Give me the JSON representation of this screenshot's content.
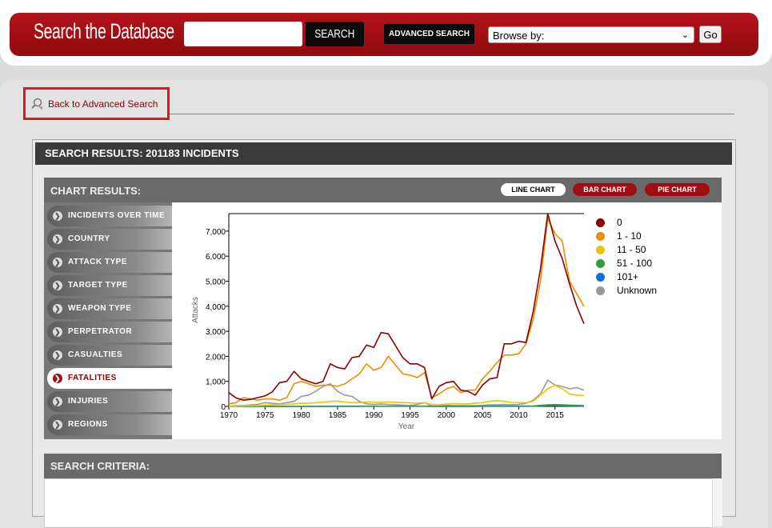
{
  "header": {
    "brand": "Search the Database",
    "search_button": "SEARCH",
    "advanced_button": "ADVANCED SEARCH",
    "browse_value": "Browse by:",
    "go_button": "Go",
    "banner_color": "#a10d12"
  },
  "back_link": "Back to Advanced Search",
  "results": {
    "title": "SEARCH RESULTS: 201183 INCIDENTS"
  },
  "chart_panel": {
    "title": "CHART RESULTS:",
    "tabs": [
      "LINE CHART",
      "BAR CHART",
      "PIE CHART"
    ],
    "active_tab": "LINE CHART"
  },
  "sidebar": {
    "items": [
      {
        "label": "INCIDENTS OVER TIME"
      },
      {
        "label": "COUNTRY"
      },
      {
        "label": "ATTACK TYPE"
      },
      {
        "label": "TARGET TYPE"
      },
      {
        "label": "WEAPON TYPE"
      },
      {
        "label": "PERPETRATOR"
      },
      {
        "label": "CASUALTIES"
      },
      {
        "label": "FATALITIES",
        "active": true
      },
      {
        "label": "INJURIES"
      },
      {
        "label": "REGIONS"
      }
    ]
  },
  "criteria": {
    "title": "SEARCH CRITERIA:"
  },
  "chart_data": {
    "type": "line",
    "xlabel": "Year",
    "ylabel": "Attacks",
    "xlim": [
      1970,
      2019
    ],
    "ylim": [
      0,
      7700
    ],
    "x_ticks": [
      1970,
      1975,
      1980,
      1985,
      1990,
      1995,
      2000,
      2005,
      2010,
      2015
    ],
    "y_ticks": [
      0,
      1000,
      2000,
      3000,
      4000,
      5000,
      6000,
      7000
    ],
    "y_tick_labels": [
      "0",
      "1,000",
      "2,000",
      "3,000",
      "4,000",
      "5,000",
      "6,000",
      "7,000"
    ],
    "legend_position": "right",
    "x": [
      1970,
      1971,
      1972,
      1973,
      1974,
      1975,
      1976,
      1977,
      1978,
      1979,
      1980,
      1981,
      1982,
      1983,
      1984,
      1985,
      1986,
      1987,
      1988,
      1989,
      1990,
      1991,
      1992,
      1994,
      1995,
      1996,
      1997,
      1998,
      1999,
      2000,
      2001,
      2002,
      2003,
      2004,
      2005,
      2006,
      2007,
      2008,
      2009,
      2010,
      2011,
      2012,
      2013,
      2014,
      2015,
      2016,
      2017,
      2018,
      2019
    ],
    "series": [
      {
        "name": "0",
        "color": "#8b0000",
        "values": [
          550,
          340,
          250,
          280,
          350,
          420,
          580,
          950,
          1000,
          1400,
          1100,
          1000,
          900,
          1000,
          1700,
          1550,
          1500,
          1950,
          2000,
          2450,
          2350,
          2950,
          2900,
          1950,
          1700,
          1700,
          1550,
          300,
          800,
          950,
          1000,
          650,
          600,
          450,
          850,
          1100,
          1150,
          2500,
          2500,
          2600,
          2550,
          3800,
          5500,
          7700,
          6600,
          5900,
          4900,
          4000,
          3300
        ]
      },
      {
        "name": "1 - 10",
        "color": "#f08c00",
        "values": [
          100,
          150,
          350,
          300,
          250,
          300,
          300,
          250,
          350,
          900,
          1000,
          900,
          800,
          850,
          850,
          800,
          900,
          1100,
          1300,
          1700,
          1450,
          1550,
          2000,
          1300,
          1250,
          1150,
          1350,
          350,
          500,
          700,
          800,
          550,
          650,
          650,
          1100,
          1400,
          1750,
          2050,
          2050,
          2100,
          2500,
          3500,
          5000,
          7500,
          6900,
          6600,
          5000,
          4500,
          4000
        ]
      },
      {
        "name": "11 - 50",
        "color": "#e6c800",
        "values": [
          0,
          10,
          20,
          30,
          30,
          50,
          60,
          70,
          80,
          100,
          120,
          130,
          150,
          170,
          200,
          210,
          180,
          150,
          150,
          180,
          170,
          160,
          180,
          150,
          140,
          130,
          150,
          70,
          60,
          90,
          110,
          100,
          100,
          130,
          150,
          200,
          230,
          200,
          160,
          150,
          150,
          200,
          450,
          700,
          850,
          700,
          500,
          450,
          430
        ]
      },
      {
        "name": "51 - 100",
        "color": "#2e9e3e",
        "values": [
          0,
          0,
          0,
          0,
          0,
          0,
          0,
          0,
          0,
          0,
          0,
          0,
          5,
          5,
          5,
          10,
          10,
          10,
          10,
          10,
          10,
          10,
          10,
          10,
          10,
          10,
          10,
          5,
          5,
          5,
          5,
          5,
          5,
          5,
          10,
          15,
          20,
          20,
          15,
          15,
          15,
          20,
          40,
          60,
          70,
          60,
          50,
          40,
          30
        ]
      },
      {
        "name": "101+",
        "color": "#0a72e0",
        "values": [
          0,
          0,
          0,
          0,
          0,
          0,
          0,
          0,
          0,
          0,
          0,
          0,
          0,
          0,
          0,
          0,
          0,
          0,
          0,
          5,
          5,
          5,
          5,
          5,
          5,
          5,
          5,
          0,
          0,
          0,
          5,
          0,
          0,
          0,
          5,
          5,
          5,
          5,
          5,
          5,
          5,
          10,
          20,
          30,
          30,
          25,
          20,
          15,
          10
        ]
      },
      {
        "name": "Unknown",
        "color": "#999999",
        "values": [
          0,
          30,
          30,
          60,
          80,
          150,
          120,
          100,
          150,
          200,
          400,
          450,
          600,
          800,
          900,
          600,
          450,
          400,
          200,
          100,
          80,
          100,
          80,
          50,
          30,
          80,
          150,
          20,
          10,
          40,
          30,
          30,
          30,
          30,
          40,
          60,
          60,
          80,
          60,
          80,
          120,
          250,
          500,
          1050,
          850,
          800,
          700,
          750,
          650
        ]
      }
    ]
  }
}
